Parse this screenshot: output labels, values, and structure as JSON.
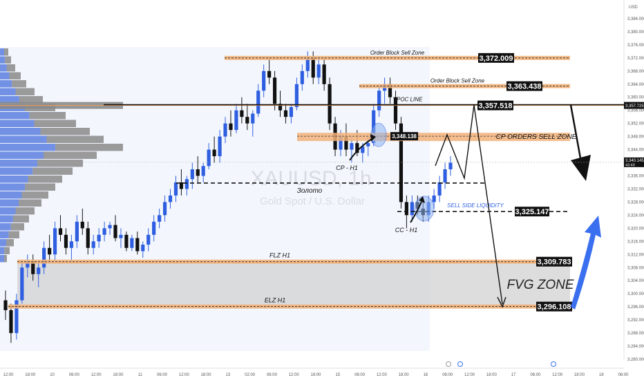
{
  "currency_label": "USD",
  "chart_data": {
    "type": "candlestick",
    "symbol_watermark": "XAUUSD, 1h",
    "symbol_subtitle": "Gold Spot / U.S. Dollar",
    "ylim": [
      3280,
      3388
    ],
    "y_ticks": [
      "3,384.000",
      "3,380.000",
      "3,376.000",
      "3,372.000",
      "3,368.000",
      "3,364.000",
      "3,360.000",
      "3,356.000",
      "3,352.000",
      "3,348.000",
      "3,344.000",
      "3,340.000",
      "3,336.000",
      "3,332.000",
      "3,328.000",
      "3,324.000",
      "3,320.000",
      "3,316.000",
      "3,312.000",
      "3,308.000",
      "3,304.000",
      "3,300.000",
      "3,296.000",
      "3,292.000",
      "3,288.000",
      "3,284.000",
      "3,280.000"
    ],
    "x_ticks": [
      "12:00",
      "18:00",
      "10",
      "06:00",
      "12:00",
      "18:00",
      "11",
      "06:00",
      "12:00",
      "18:00",
      "13",
      "02:00",
      "06:00",
      "12:00",
      "18:00",
      "15",
      "06:00",
      "12:00",
      "18:00",
      "16",
      "06:00",
      "12:00",
      "18:00",
      "17",
      "06:00",
      "12:00",
      "18:00",
      "18",
      "06:00"
    ],
    "current_price": "3,340.145",
    "current_price_sub": "43:40",
    "vpoc_price_tag": "3,357.725",
    "levels": [
      {
        "name": "Order Block Sell Zone",
        "value": "3,372.009",
        "price": 3372.0
      },
      {
        "name": "Order Block Sell Zone",
        "value": "3,363.438",
        "price": 3363.4
      },
      {
        "name": "VPOC LINE",
        "value": "3,357.518",
        "price": 3357.5
      },
      {
        "name": "CP ORDERS SELL ZONE",
        "value": "3,348.138",
        "price": 3348.1
      },
      {
        "name": "SELL SIDE LIQUIDITY",
        "value": "3,325.147",
        "price": 3325.1
      },
      {
        "name": "FLZ H1",
        "value": "3,309.783",
        "price": 3309.8
      },
      {
        "name": "ELZ H1",
        "value": "3,296.108",
        "price": 3296.1
      }
    ],
    "zones": [
      {
        "name": "FVG ZONE",
        "top": 3309.8,
        "bottom": 3296.1
      }
    ],
    "annotations": [
      "CP - H1",
      "CC - H1",
      "Золото"
    ],
    "candles": [
      [
        3298,
        3301,
        3292,
        3295
      ],
      [
        3295,
        3297,
        3285,
        3288
      ],
      [
        3288,
        3300,
        3286,
        3298
      ],
      [
        3298,
        3310,
        3297,
        3308
      ],
      [
        3308,
        3312,
        3305,
        3310
      ],
      [
        3310,
        3312,
        3304,
        3306
      ],
      [
        3306,
        3310,
        3302,
        3308
      ],
      [
        3308,
        3316,
        3306,
        3314
      ],
      [
        3314,
        3318,
        3310,
        3312
      ],
      [
        3312,
        3322,
        3310,
        3320
      ],
      [
        3320,
        3324,
        3316,
        3318
      ],
      [
        3318,
        3320,
        3312,
        3314
      ],
      [
        3314,
        3318,
        3310,
        3316
      ],
      [
        3316,
        3324,
        3314,
        3322
      ],
      [
        3322,
        3326,
        3318,
        3320
      ],
      [
        3320,
        3322,
        3312,
        3314
      ],
      [
        3314,
        3318,
        3312,
        3316
      ],
      [
        3316,
        3320,
        3314,
        3318
      ],
      [
        3318,
        3322,
        3316,
        3320
      ],
      [
        3320,
        3322,
        3318,
        3321
      ],
      [
        3321,
        3324,
        3316,
        3317
      ],
      [
        3317,
        3320,
        3314,
        3318
      ],
      [
        3318,
        3319,
        3313,
        3314
      ],
      [
        3314,
        3318,
        3313,
        3317
      ],
      [
        3317,
        3319,
        3312,
        3313
      ],
      [
        3313,
        3316,
        3311,
        3315
      ],
      [
        3315,
        3320,
        3313,
        3318
      ],
      [
        3318,
        3324,
        3316,
        3322
      ],
      [
        3322,
        3326,
        3320,
        3324
      ],
      [
        3324,
        3330,
        3322,
        3328
      ],
      [
        3328,
        3332,
        3326,
        3330
      ],
      [
        3330,
        3336,
        3328,
        3334
      ],
      [
        3334,
        3338,
        3330,
        3332
      ],
      [
        3332,
        3336,
        3330,
        3335
      ],
      [
        3335,
        3340,
        3332,
        3338
      ],
      [
        3338,
        3342,
        3334,
        3336
      ],
      [
        3336,
        3340,
        3334,
        3339
      ],
      [
        3339,
        3346,
        3338,
        3344
      ],
      [
        3344,
        3348,
        3340,
        3342
      ],
      [
        3342,
        3350,
        3340,
        3348
      ],
      [
        3348,
        3354,
        3346,
        3352
      ],
      [
        3352,
        3356,
        3348,
        3350
      ],
      [
        3350,
        3358,
        3349,
        3356
      ],
      [
        3356,
        3360,
        3352,
        3354
      ],
      [
        3354,
        3358,
        3350,
        3352
      ],
      [
        3352,
        3356,
        3348,
        3355
      ],
      [
        3355,
        3364,
        3354,
        3362
      ],
      [
        3362,
        3370,
        3360,
        3368
      ],
      [
        3368,
        3372,
        3364,
        3366
      ],
      [
        3366,
        3368,
        3356,
        3358
      ],
      [
        3358,
        3362,
        3354,
        3356
      ],
      [
        3356,
        3358,
        3352,
        3354
      ],
      [
        3354,
        3358,
        3352,
        3357
      ],
      [
        3357,
        3366,
        3356,
        3364
      ],
      [
        3364,
        3370,
        3362,
        3368
      ],
      [
        3368,
        3374,
        3366,
        3372
      ],
      [
        3372,
        3374,
        3364,
        3366
      ],
      [
        3366,
        3372,
        3364,
        3370
      ],
      [
        3370,
        3372,
        3362,
        3364
      ],
      [
        3364,
        3366,
        3350,
        3352
      ],
      [
        3352,
        3354,
        3342,
        3344
      ],
      [
        3344,
        3350,
        3342,
        3348
      ],
      [
        3348,
        3352,
        3342,
        3344
      ],
      [
        3344,
        3348,
        3340,
        3346
      ],
      [
        3346,
        3350,
        3342,
        3343
      ],
      [
        3343,
        3346,
        3340,
        3345
      ],
      [
        3345,
        3348,
        3342,
        3346
      ],
      [
        3346,
        3358,
        3345,
        3356
      ],
      [
        3356,
        3364,
        3354,
        3362
      ],
      [
        3362,
        3366,
        3358,
        3364
      ],
      [
        3364,
        3366,
        3358,
        3360
      ],
      [
        3360,
        3362,
        3350,
        3352
      ],
      [
        3352,
        3354,
        3326,
        3328
      ],
      [
        3328,
        3330,
        3320,
        3324
      ],
      [
        3324,
        3330,
        3322,
        3328
      ],
      [
        3328,
        3330,
        3324,
        3326
      ],
      [
        3326,
        3328,
        3322,
        3324
      ],
      [
        3324,
        3330,
        3322,
        3328
      ],
      [
        3328,
        3332,
        3326,
        3330
      ],
      [
        3330,
        3336,
        3328,
        3334
      ],
      [
        3334,
        3340,
        3332,
        3338
      ],
      [
        3338,
        3342,
        3336,
        3340
      ]
    ]
  }
}
